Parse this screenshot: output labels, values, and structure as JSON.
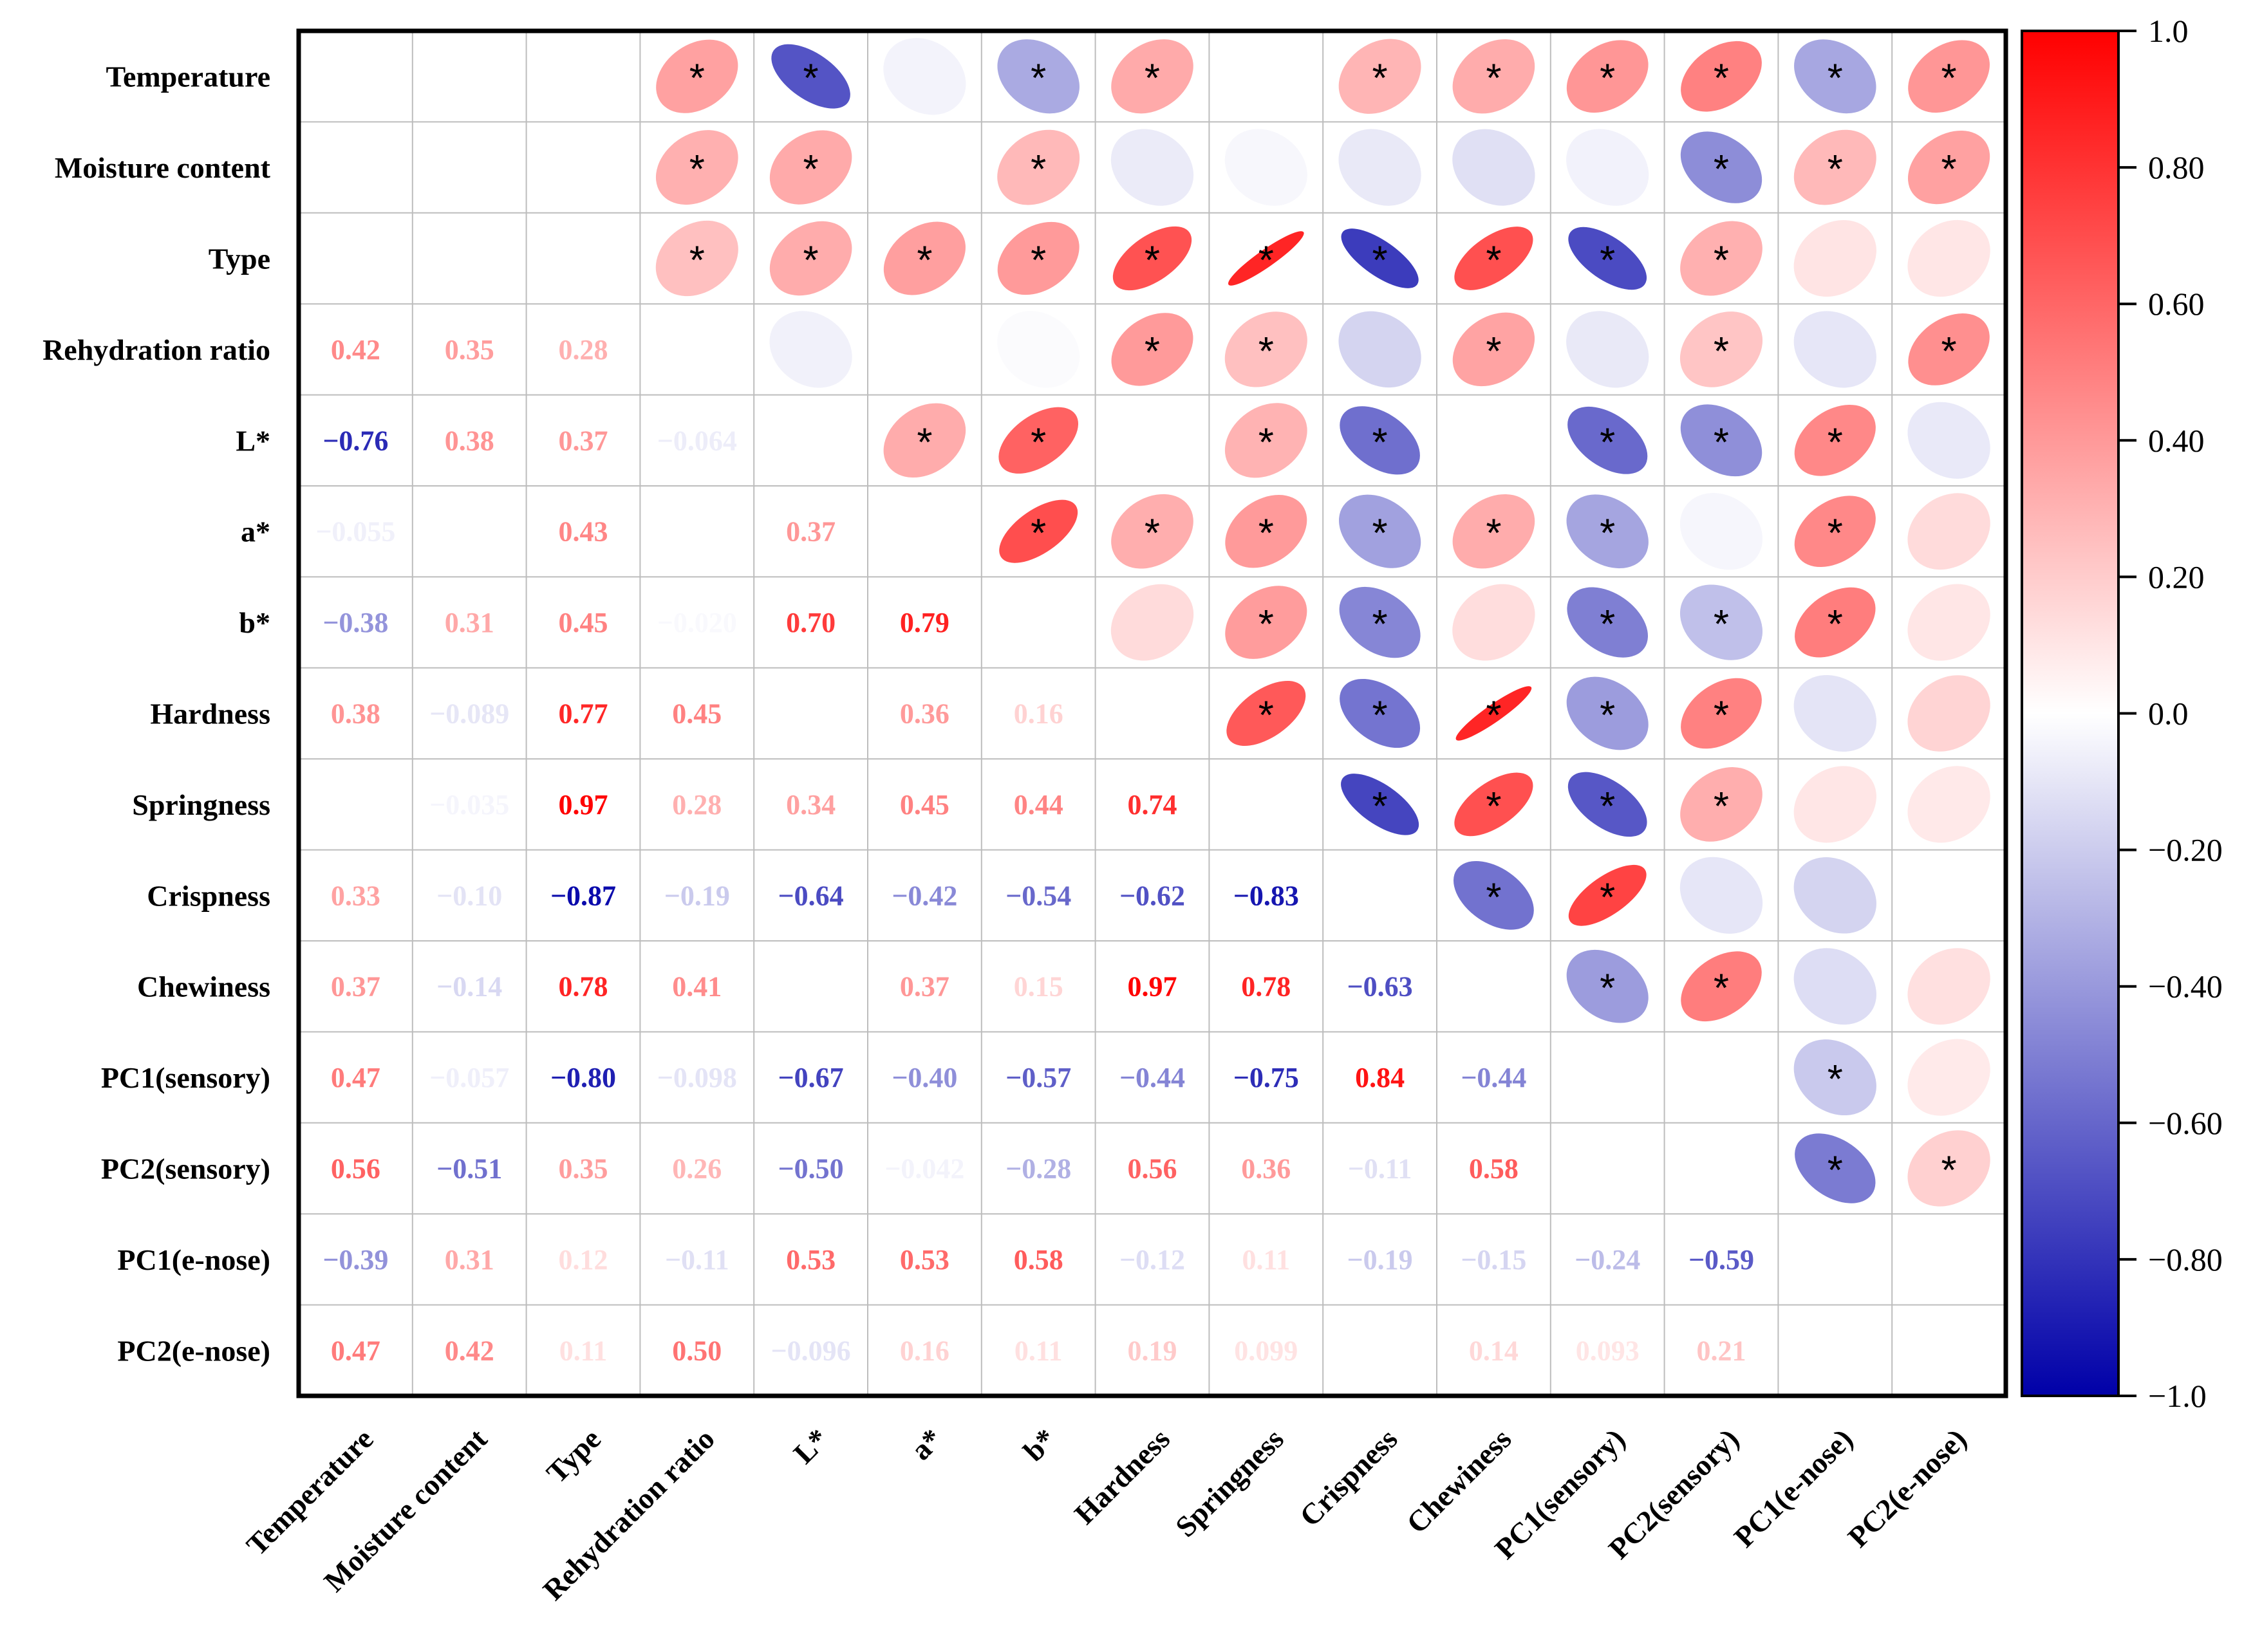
{
  "chart_data": {
    "type": "heatmap",
    "title": "",
    "variables": [
      "Temperature",
      "Moisture content",
      "Type",
      "Rehydration ratio",
      "L*",
      "a*",
      "b*",
      "Hardness",
      "Springness",
      "Crispness",
      "Chewiness",
      "PC1(sensory)",
      "PC2(sensory)",
      "PC1(e-nose)",
      "PC2(e-nose)"
    ],
    "lower_labels": [
      [],
      [
        ""
      ],
      [
        "",
        ""
      ],
      [
        "0.42",
        "0.35",
        "0.28"
      ],
      [
        "−0.76",
        "0.38",
        "0.37",
        "−0.064"
      ],
      [
        "−0.055",
        "",
        "0.43",
        "",
        "0.37"
      ],
      [
        "−0.38",
        "0.31",
        "0.45",
        "−0.020",
        "0.70",
        "0.79"
      ],
      [
        "0.38",
        "−0.089",
        "0.77",
        "0.45",
        "",
        "0.36",
        "0.16"
      ],
      [
        "",
        "−0.035",
        "0.97",
        "0.28",
        "0.34",
        "0.45",
        "0.44",
        "0.74"
      ],
      [
        "0.33",
        "−0.10",
        "−0.87",
        "−0.19",
        "−0.64",
        "−0.42",
        "−0.54",
        "−0.62",
        "−0.83"
      ],
      [
        "0.37",
        "−0.14",
        "0.78",
        "0.41",
        "",
        "0.37",
        "0.15",
        "0.97",
        "0.78",
        "−0.63"
      ],
      [
        "0.47",
        "−0.057",
        "−0.80",
        "−0.098",
        "−0.67",
        "−0.40",
        "−0.57",
        "−0.44",
        "−0.75",
        "0.84",
        "−0.44"
      ],
      [
        "0.56",
        "−0.51",
        "0.35",
        "0.26",
        "−0.50",
        "−0.042",
        "−0.28",
        "0.56",
        "0.36",
        "−0.11",
        "0.58",
        ""
      ],
      [
        "−0.39",
        "0.31",
        "0.12",
        "−0.11",
        "0.53",
        "0.53",
        "0.58",
        "−0.12",
        "0.11",
        "−0.19",
        "−0.15",
        "−0.24",
        "−0.59"
      ],
      [
        "0.47",
        "0.42",
        "0.11",
        "0.50",
        "−0.096",
        "0.16",
        "0.11",
        "0.19",
        "0.099",
        "",
        "0.14",
        "0.093",
        "0.21",
        ""
      ]
    ],
    "upper_values": [
      [
        0,
        0,
        0,
        0.42,
        -0.76,
        -0.055,
        -0.38,
        0.38,
        0,
        0.33,
        0.37,
        0.47,
        0.56,
        -0.39,
        0.47
      ],
      [
        0,
        0,
        0,
        0.35,
        0.38,
        0,
        0.31,
        -0.089,
        -0.035,
        -0.1,
        -0.14,
        -0.057,
        -0.51,
        0.31,
        0.42
      ],
      [
        0,
        0,
        0,
        0.28,
        0.37,
        0.43,
        0.45,
        0.77,
        0.97,
        -0.87,
        0.78,
        -0.8,
        0.35,
        0.12,
        0.11
      ],
      [
        0,
        0,
        0,
        0,
        -0.064,
        0,
        -0.02,
        0.45,
        0.28,
        -0.19,
        0.41,
        -0.098,
        0.26,
        -0.11,
        0.5
      ],
      [
        0,
        0,
        0,
        0,
        0,
        0.37,
        0.7,
        0,
        0.34,
        -0.64,
        0,
        -0.67,
        -0.5,
        0.53,
        -0.096
      ],
      [
        0,
        0,
        0,
        0,
        0,
        0,
        0.79,
        0.36,
        0.45,
        -0.42,
        0.37,
        -0.4,
        -0.042,
        0.53,
        0.16
      ],
      [
        0,
        0,
        0,
        0,
        0,
        0,
        0,
        0.16,
        0.44,
        -0.54,
        0.15,
        -0.57,
        -0.28,
        0.58,
        0.11
      ],
      [
        0,
        0,
        0,
        0,
        0,
        0,
        0,
        0,
        0.74,
        -0.62,
        0.97,
        -0.44,
        0.56,
        -0.12,
        0.19
      ],
      [
        0,
        0,
        0,
        0,
        0,
        0,
        0,
        0,
        0,
        -0.83,
        0.78,
        -0.75,
        0.36,
        0.11,
        0.099
      ],
      [
        0,
        0,
        0,
        0,
        0,
        0,
        0,
        0,
        0,
        0,
        -0.63,
        0.84,
        -0.11,
        -0.19,
        0
      ],
      [
        0,
        0,
        0,
        0,
        0,
        0,
        0,
        0,
        0,
        0,
        0,
        -0.44,
        0.58,
        -0.15,
        0.14
      ],
      [
        0,
        0,
        0,
        0,
        0,
        0,
        0,
        0,
        0,
        0,
        0,
        0,
        0,
        -0.24,
        0.093
      ],
      [
        0,
        0,
        0,
        0,
        0,
        0,
        0,
        0,
        0,
        0,
        0,
        0,
        0,
        -0.59,
        0.21
      ],
      [
        0,
        0,
        0,
        0,
        0,
        0,
        0,
        0,
        0,
        0,
        0,
        0,
        0,
        0,
        0
      ],
      [
        0,
        0,
        0,
        0,
        0,
        0,
        0,
        0,
        0,
        0,
        0,
        0,
        0,
        0,
        0
      ]
    ],
    "significant": [
      [
        3,
        4,
        6,
        7,
        9,
        10,
        11,
        12,
        13,
        14
      ],
      [
        3,
        4,
        6,
        12,
        13,
        14
      ],
      [
        3,
        4,
        5,
        6,
        7,
        8,
        9,
        10,
        11,
        12
      ],
      [
        7,
        8,
        10,
        12,
        14
      ],
      [
        5,
        6,
        8,
        9,
        11,
        12,
        13
      ],
      [
        6,
        7,
        8,
        9,
        10,
        11,
        13
      ],
      [
        8,
        9,
        11,
        12,
        13
      ],
      [
        8,
        9,
        10,
        11,
        12
      ],
      [
        9,
        10,
        11,
        12
      ],
      [
        10,
        11
      ],
      [
        11,
        12
      ],
      [
        13
      ],
      [
        13,
        14
      ],
      [],
      []
    ],
    "star_symbol": "*",
    "colorbar": {
      "range": [
        -1.0,
        1.0
      ],
      "ticks": [
        "1.0",
        "0.80",
        "0.60",
        "0.40",
        "0.20",
        "0.0",
        "−0.20",
        "−0.40",
        "−0.60",
        "−0.80",
        "−1.0"
      ],
      "tick_values": [
        1.0,
        0.8,
        0.6,
        0.4,
        0.2,
        0.0,
        -0.2,
        -0.4,
        -0.6,
        -0.8,
        -1.0
      ]
    },
    "colors": {
      "negative": "#0000a8",
      "neutral": "#ffffff",
      "positive": "#ff0000"
    },
    "legend_position": "right",
    "grid": true
  }
}
